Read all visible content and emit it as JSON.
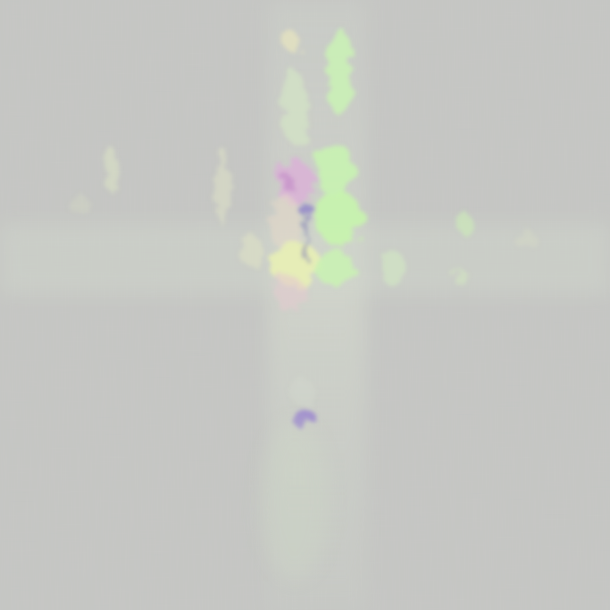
{
  "image": {
    "description_colors": {
      "background": "#c8c8c6",
      "green_accent": "#c9f5b4",
      "magenta_accent": "#d9a9d6",
      "violet_accent": "#8f7dc8",
      "yellow_accent": "#e6eeb8"
    }
  }
}
